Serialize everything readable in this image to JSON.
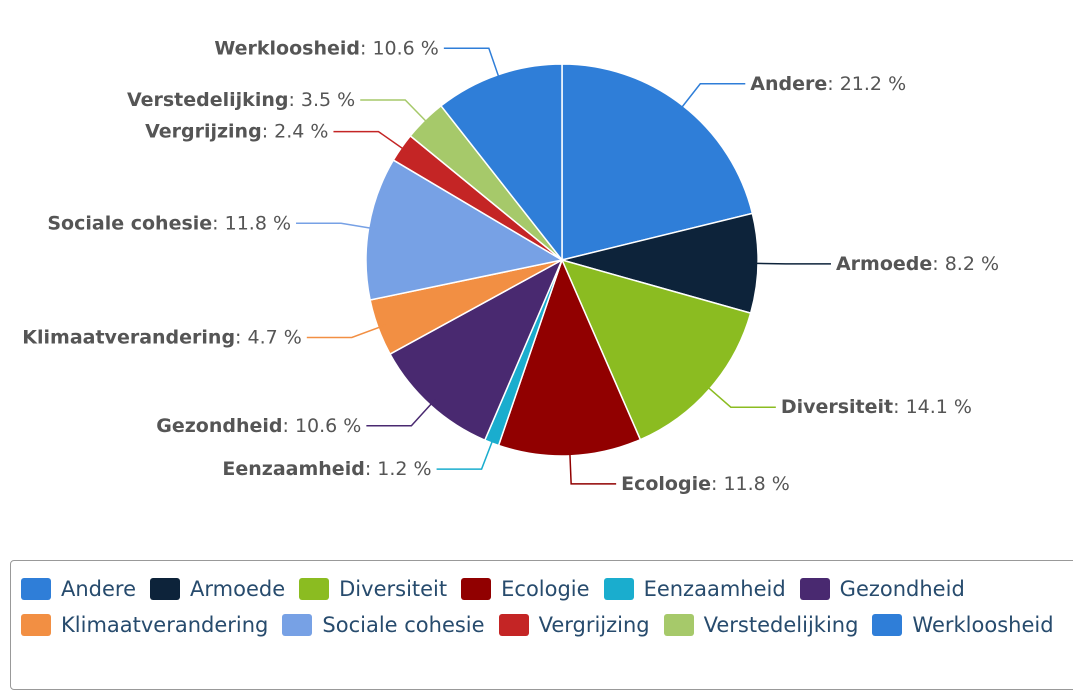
{
  "chart_data": {
    "type": "pie",
    "separator": ": ",
    "categories": [
      "Andere",
      "Armoede",
      "Diversiteit",
      "Ecologie",
      "Eenzaamheid",
      "Gezondheid",
      "Klimaatverandering",
      "Sociale cohesie",
      "Vergrijzing",
      "Verstedelijking",
      "Werkloosheid"
    ],
    "values": [
      21.2,
      8.2,
      14.1,
      11.8,
      1.2,
      10.6,
      4.7,
      11.8,
      2.4,
      3.5,
      10.6
    ],
    "value_labels": [
      "21.2 %",
      "8.2 %",
      "14.1 %",
      "11.8 %",
      "1.2 %",
      "10.6 %",
      "4.7 %",
      "11.8 %",
      "2.4 %",
      "3.5 %",
      "10.6 %"
    ],
    "colors": [
      "#2f7ed8",
      "#0d233a",
      "#8bbc21",
      "#910000",
      "#1aadce",
      "#492970",
      "#f28f43",
      "#77a1e5",
      "#c42525",
      "#a6c96a",
      "#2f7ed8"
    ],
    "legend": "bottom"
  }
}
